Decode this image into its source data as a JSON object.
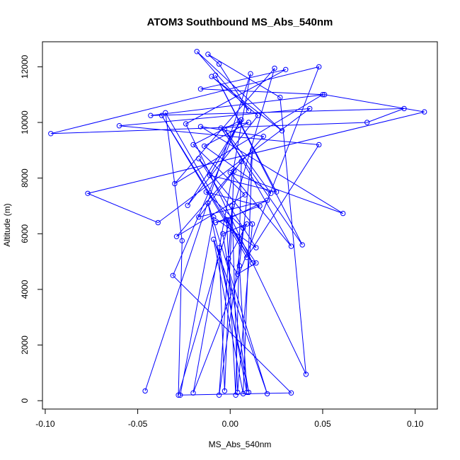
{
  "chart_data": {
    "type": "scatter",
    "title": "ATOM3 Southbound MS_Abs_540nm",
    "xlabel": "MS_Abs_540nm",
    "ylabel": "Altitude (m)",
    "xlim": [
      -0.1015,
      0.112
    ],
    "ylim": [
      -300,
      12900
    ],
    "x_ticks": [
      -0.1,
      -0.05,
      0.0,
      0.05,
      0.1
    ],
    "x_tick_labels": [
      "-0.10",
      "-0.05",
      "0.00",
      "0.05",
      "0.10"
    ],
    "y_ticks": [
      0,
      2000,
      4000,
      6000,
      8000,
      10000,
      12000
    ],
    "y_tick_labels": [
      "0",
      "2000",
      "4000",
      "6000",
      "8000",
      "10000",
      "12000"
    ],
    "grid": false,
    "legend": "none",
    "series_color": "#0000ff",
    "marker": "open-circle",
    "connected": true,
    "series": [
      {
        "x": [
          -0.046,
          0.011,
          -0.02,
          0.048,
          -0.097,
          0.074,
          0.094,
          -0.043,
          0.051,
          0.105,
          -0.077,
          -0.039,
          0.043,
          -0.06,
          0.048,
          0.009,
          -0.037,
          0.012,
          -0.035,
          -0.026,
          -0.028,
          0.024,
          -0.03,
          0.05,
          -0.016,
          0.03,
          -0.024,
          0.041,
          0.027,
          -0.012,
          -0.006,
          0.01,
          -0.018,
          0.028,
          -0.01,
          0.015,
          -0.023,
          0.006,
          -0.011,
          0.025,
          -0.008,
          0.039,
          -0.005,
          0.01,
          -0.014,
          0.022,
          -0.003,
          0.033,
          0.0,
          0.061,
          -0.016,
          0.018,
          -0.029,
          0.008,
          -0.02,
          0.005,
          -0.031,
          0.033,
          -0.027,
          -0.009,
          0.014,
          -0.017,
          0.012,
          0.004,
          0.001,
          -0.006,
          0.007,
          -0.013,
          0.016,
          -0.008,
          -0.002,
          0.003,
          0.006,
          -0.017,
          0.02,
          -0.002,
          0.014,
          0.004,
          -0.001,
          0.009,
          -0.004,
          0.01,
          -0.012,
          0.02,
          -0.009,
          0.007,
          0.012,
          0.005,
          0.009,
          -0.006,
          -0.003,
          0.002
        ],
        "y": [
          350,
          11750,
          280,
          12000,
          9600,
          10000,
          10500,
          10250,
          11000,
          10380,
          7450,
          6400,
          10500,
          9880,
          9200,
          5150,
          10250,
          4950,
          10350,
          5750,
          200,
          11950,
          7800,
          11000,
          11200,
          11900,
          9950,
          950,
          10900,
          12450,
          12100,
          10420,
          12550,
          9700,
          11650,
          10250,
          7020,
          10100,
          8100,
          7500,
          11700,
          5600,
          9800,
          10000,
          9150,
          7450,
          9750,
          5550,
          8200,
          6730,
          9850,
          9500,
          5900,
          7400,
          9200,
          10050,
          4500,
          280,
          200,
          6600,
          5500,
          8700,
          6350,
          300,
          7000,
          200,
          6200,
          7500,
          7000,
          6400,
          6500,
          200,
          8600,
          6600,
          7200,
          6500,
          4950,
          4550,
          5100,
          6350,
          6000,
          300,
          7100,
          250,
          5800,
          250,
          9000,
          4850,
          300,
          5500,
          350,
          8250
        ]
      }
    ]
  }
}
